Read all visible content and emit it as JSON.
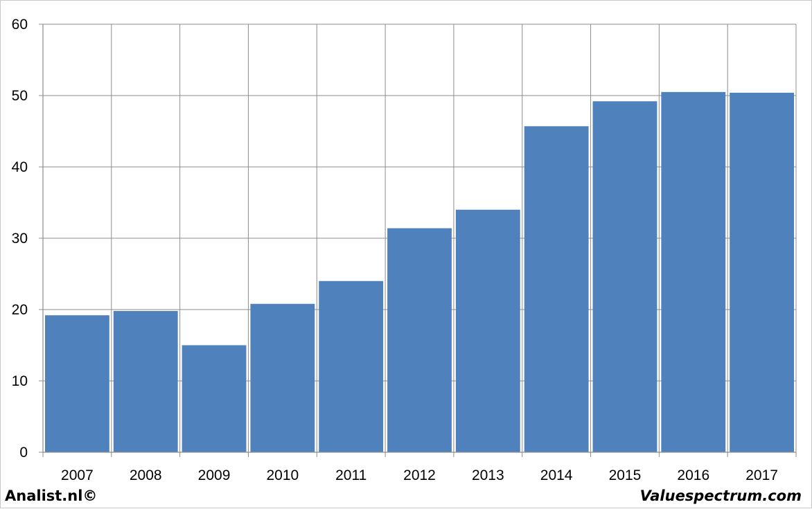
{
  "chart_data": {
    "type": "bar",
    "categories": [
      "2007",
      "2008",
      "2009",
      "2010",
      "2011",
      "2012",
      "2013",
      "2014",
      "2015",
      "2016",
      "2017"
    ],
    "values": [
      19.2,
      19.8,
      15.0,
      20.8,
      24.0,
      31.4,
      34.0,
      45.7,
      49.2,
      50.5,
      50.4
    ],
    "ylim": [
      0,
      60
    ],
    "yticks": [
      "0",
      "10",
      "20",
      "30",
      "40",
      "50",
      "60"
    ],
    "title": "",
    "xlabel": "",
    "ylabel": "",
    "grid": true,
    "bar_color": "#4f81bd"
  },
  "footer": {
    "left": "Analist.nl©",
    "right": "Valuespectrum.com"
  }
}
